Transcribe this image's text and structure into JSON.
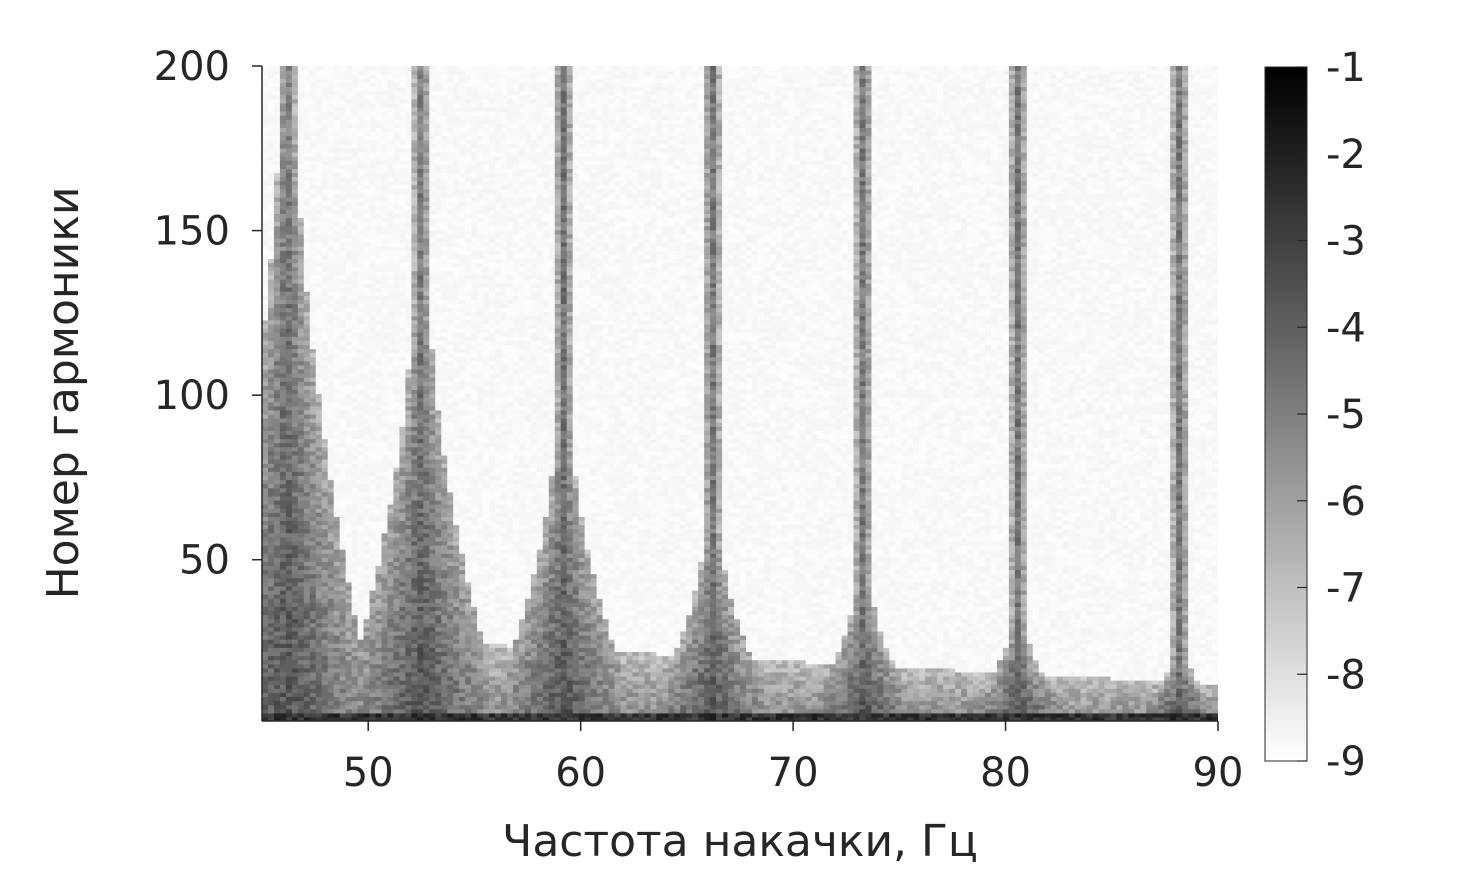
{
  "chart_data": {
    "type": "heatmap",
    "title": "",
    "xlabel": "Частота накачки, Гц",
    "ylabel": "Номер гармоники",
    "xlim": [
      45,
      90
    ],
    "ylim": [
      1,
      200
    ],
    "xticks": [
      50,
      60,
      70,
      80,
      90
    ],
    "yticks": [
      50,
      100,
      150,
      200
    ],
    "grid": false,
    "colormap": "gray-reversed",
    "colorbar": {
      "location": "right",
      "range": [
        -9,
        -1
      ],
      "ticks": [
        -1,
        -2,
        -3,
        -4,
        -5,
        -6,
        -7,
        -8,
        -9
      ]
    },
    "background_level": -8.8,
    "peaks": [
      {
        "x": 46.2,
        "top_harmonic": 200
      },
      {
        "x": 52.5,
        "top_harmonic": 140
      },
      {
        "x": 59.2,
        "top_harmonic": 97
      },
      {
        "x": 66.2,
        "top_harmonic": 62
      },
      {
        "x": 73.3,
        "top_harmonic": 45
      },
      {
        "x": 80.6,
        "top_harmonic": 32
      },
      {
        "x": 88.2,
        "top_harmonic": 22
      }
    ]
  }
}
